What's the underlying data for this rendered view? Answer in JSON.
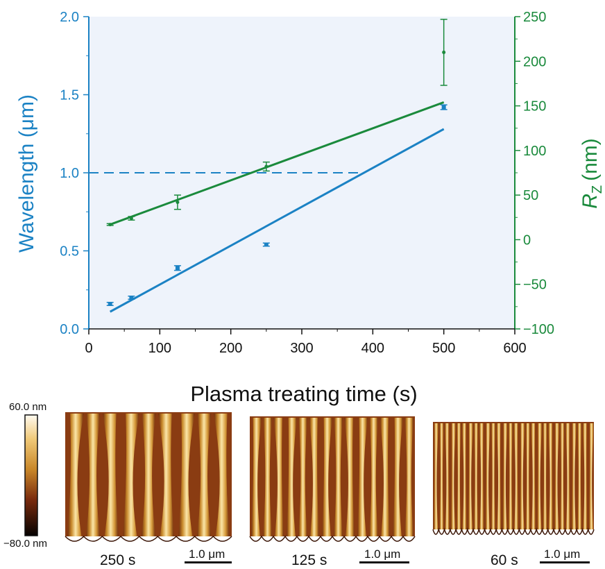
{
  "chart_data": {
    "type": "scatter",
    "xlabel": "Plasma treating time (s)",
    "xlim": [
      0,
      600
    ],
    "x_ticks": [
      "0",
      "100",
      "200",
      "300",
      "400",
      "500",
      "600"
    ],
    "left_axis": {
      "label": "Wavelength (μm)",
      "ylim": [
        0.0,
        2.0
      ],
      "ticks": [
        "0.0",
        "0.5",
        "1.0",
        "1.5",
        "2.0"
      ],
      "color": "#1b82c4"
    },
    "right_axis": {
      "label_main": "R",
      "label_sub": "Z",
      "label_unit": "(nm)",
      "ylim": [
        -100,
        250
      ],
      "ticks": [
        "−100",
        "−50",
        "0",
        "50",
        "100",
        "150",
        "200",
        "250"
      ],
      "color": "#1a8a3c"
    },
    "series": [
      {
        "axis": "left",
        "color": "#1b82c4",
        "points": [
          {
            "x": 30,
            "y": 0.16,
            "err": 0.01
          },
          {
            "x": 60,
            "y": 0.2,
            "err": 0.01
          },
          {
            "x": 125,
            "y": 0.39,
            "err": 0.015
          },
          {
            "x": 250,
            "y": 0.54,
            "err": 0.01
          },
          {
            "x": 500,
            "y": 1.42,
            "err": 0.015
          }
        ],
        "fit": {
          "x0": 30,
          "y0": 0.11,
          "x1": 500,
          "y1": 1.28
        }
      },
      {
        "axis": "right",
        "color": "#1a8a3c",
        "points": [
          {
            "x": 30,
            "y": 17,
            "err": 1
          },
          {
            "x": 60,
            "y": 24,
            "err": 2
          },
          {
            "x": 125,
            "y": 42,
            "err": 8
          },
          {
            "x": 250,
            "y": 82,
            "err": 5
          },
          {
            "x": 500,
            "y": 210,
            "err": 37
          }
        ],
        "fit": {
          "x0": 30,
          "y0": 17,
          "x1": 500,
          "y1": 154
        }
      }
    ],
    "reference_line": {
      "axis": "left",
      "y": 1.0,
      "x_from": 0,
      "x_to": 385,
      "style": "dashed"
    }
  },
  "afm": {
    "colorbar_max": "60.0 nm",
    "colorbar_min": "−80.0 nm",
    "scale_label": "1.0 μm",
    "panels": [
      {
        "caption": "250 s",
        "ridges": 9
      },
      {
        "caption": "125 s",
        "ridges": 14
      },
      {
        "caption": "60 s",
        "ridges": 28
      }
    ]
  }
}
